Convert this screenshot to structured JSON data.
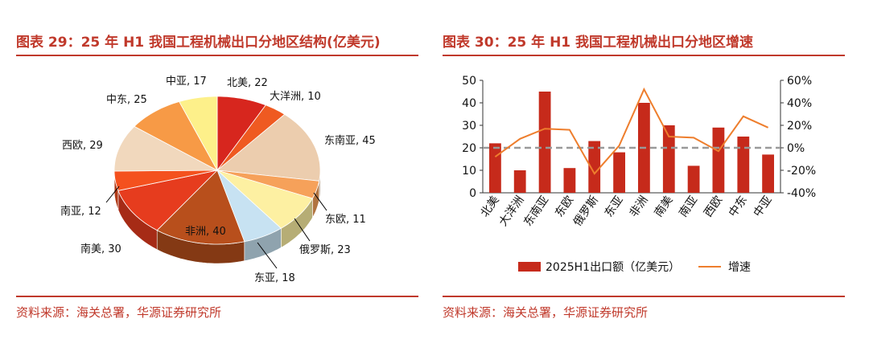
{
  "left": {
    "title": "图表 29：25 年 H1 我国工程机械出口分地区结构(亿美元)",
    "source": "资料来源：海关总署，华源证券研究所"
  },
  "right": {
    "title": "图表 30：25 年 H1 我国工程机械出口分地区增速",
    "source": "资料来源：海关总署，华源证券研究所"
  },
  "chart_data": [
    {
      "type": "pie",
      "title": "25 年 H1 我国工程机械出口分地区结构(亿美元)",
      "slices": [
        {
          "name": "北美",
          "value": 22,
          "label": "北美, 22",
          "color": "#d7261e"
        },
        {
          "name": "大洋洲",
          "value": 10,
          "label": "大洋洲, 10",
          "color": "#ef5a21"
        },
        {
          "name": "东南亚",
          "value": 45,
          "label": "东南亚, 45",
          "color": "#eccdae"
        },
        {
          "name": "东欧",
          "value": 11,
          "label": "东欧, 11",
          "color": "#f6a15a"
        },
        {
          "name": "俄罗斯",
          "value": 23,
          "label": "俄罗斯, 23",
          "color": "#fdf0a2"
        },
        {
          "name": "东亚",
          "value": 18,
          "label": "东亚, 18",
          "color": "#c7e2f2"
        },
        {
          "name": "非洲",
          "value": 40,
          "label": "非洲, 40",
          "color": "#b84f1c"
        },
        {
          "name": "南美",
          "value": 30,
          "label": "南美, 30",
          "color": "#e63c1e"
        },
        {
          "name": "南亚",
          "value": 12,
          "label": "南亚, 12",
          "color": "#f4511e"
        },
        {
          "name": "西欧",
          "value": 29,
          "label": "西欧, 29",
          "color": "#f1d8bd"
        },
        {
          "name": "中东",
          "value": 25,
          "label": "中东, 25",
          "color": "#f79a46"
        },
        {
          "name": "中亚",
          "value": 17,
          "label": "中亚, 17",
          "color": "#fdf08a"
        }
      ]
    },
    {
      "type": "bar",
      "title": "25 年 H1 我国工程机械出口分地区增速",
      "categories": [
        "北美",
        "大洋洲",
        "东南亚",
        "东欧",
        "俄罗斯",
        "东亚",
        "非洲",
        "南美",
        "南亚",
        "西欧",
        "中东",
        "中亚"
      ],
      "series": [
        {
          "name": "2025H1出口额（亿美元）",
          "type": "bar",
          "axis": "left",
          "color": "#c62a1b",
          "values": [
            22,
            10,
            45,
            11,
            23,
            18,
            40,
            30,
            12,
            29,
            25,
            17
          ]
        },
        {
          "name": "增速",
          "type": "line",
          "axis": "right",
          "color": "#ee7e2d",
          "values": [
            -8,
            8,
            17,
            16,
            -23,
            2,
            52,
            10,
            9,
            -3,
            28,
            18
          ]
        }
      ],
      "left_axis": {
        "min": 0,
        "max": 50,
        "ticks": [
          "0",
          "10",
          "20",
          "30",
          "40",
          "50"
        ]
      },
      "right_axis": {
        "min": -40,
        "max": 60,
        "ticks": [
          "-40%",
          "-20%",
          "0%",
          "20%",
          "40%",
          "60%"
        ]
      },
      "reference_line": {
        "axis": "right",
        "value": 0,
        "style": "dashed",
        "color": "#999999"
      }
    }
  ]
}
